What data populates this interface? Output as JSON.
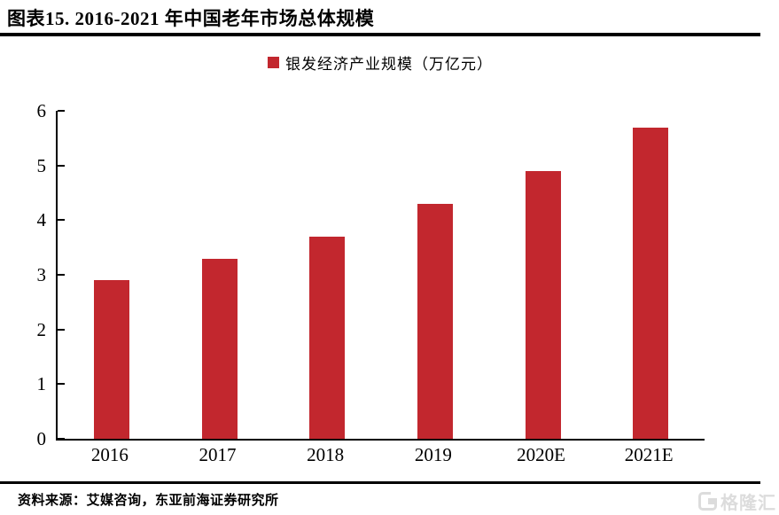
{
  "header": {
    "title": "图表15. 2016-2021 年中国老年市场总体规模"
  },
  "chart_data": {
    "type": "bar",
    "title": "图表15. 2016-2021 年中国老年市场总体规模",
    "legend": "银发经济产业规模（万亿元）",
    "legend_position": "top-center",
    "categories": [
      "2016",
      "2017",
      "2018",
      "2019",
      "2020E",
      "2021E"
    ],
    "values": [
      2.9,
      3.3,
      3.7,
      4.3,
      4.9,
      5.7
    ],
    "xlabel": "",
    "ylabel": "",
    "ylim": [
      0,
      6
    ],
    "yticks": [
      0,
      1,
      2,
      3,
      4,
      5,
      6
    ],
    "grid": false,
    "bar_color": "#c2272e"
  },
  "footer": {
    "source": "资料来源：艾媒咨询，东亚前海证券研究所",
    "watermark": "格隆汇"
  },
  "icons": {
    "legend_swatch": "red-square-marker",
    "watermark_logo": "gelonghui-g-logo"
  }
}
